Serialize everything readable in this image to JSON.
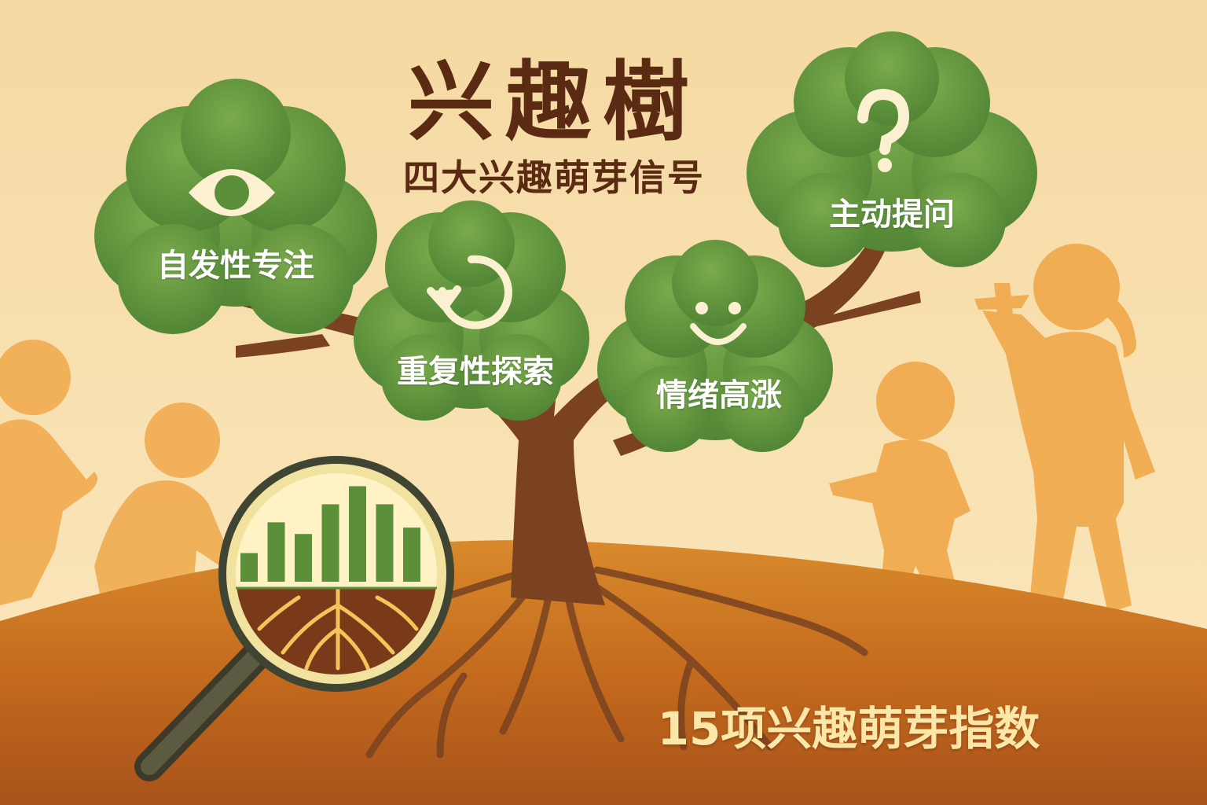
{
  "title": "兴趣樹",
  "subtitle": "四大兴趣萌芽信号",
  "signals": [
    {
      "label": "自发性专注",
      "icon": "eye-icon"
    },
    {
      "label": "重复性探索",
      "icon": "repeat-arrow-icon"
    },
    {
      "label": "情绪高涨",
      "icon": "smile-icon"
    },
    {
      "label": "主动提问",
      "icon": "question-mark-icon"
    }
  ],
  "index_text": "15项兴趣萌芽指数",
  "magnifier": {
    "icon": "magnifying-glass-icon",
    "bars": [
      0.27,
      0.56,
      0.45,
      0.73,
      0.9,
      0.73,
      0.51
    ]
  },
  "colors": {
    "background": "#f6dfae",
    "foliage": "#5b8f3a",
    "trunk": "#7a4220",
    "ground": "#c46b1e",
    "title": "#5a2a12",
    "silhouette": "#f0a84a"
  }
}
